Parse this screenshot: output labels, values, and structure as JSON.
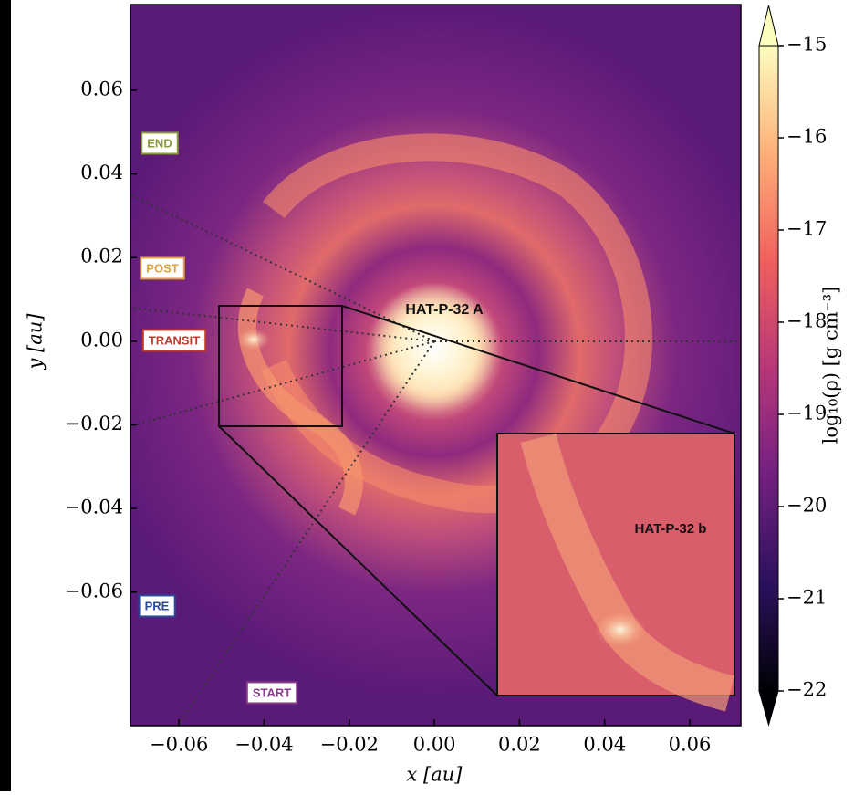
{
  "chart_data": {
    "type": "image",
    "xlabel": "x [au]",
    "ylabel": "y [au]",
    "xlim": [
      -0.0714,
      0.072
    ],
    "ylim": [
      -0.0919,
      0.0805
    ],
    "xticks": [
      {
        "value": -0.06,
        "label": "−0.06"
      },
      {
        "value": -0.04,
        "label": "−0.04"
      },
      {
        "value": -0.02,
        "label": "−0.02"
      },
      {
        "value": 0,
        "label": "0.00"
      },
      0.02,
      0.04,
      0.06
    ],
    "yticks": [
      {
        "value": -0.06,
        "label": "−0.06"
      },
      {
        "value": -0.04,
        "label": "−0.04"
      },
      {
        "value": -0.02,
        "label": "−0.02"
      },
      {
        "value": 0,
        "label": "0.00"
      },
      0.02,
      0.04,
      0.06
    ],
    "colorbar": {
      "label": "log₁₀(ρ) [g cm⁻³]",
      "lim": [
        -22,
        -15
      ],
      "ticks": [
        {
          "value": -22,
          "label": "−22"
        },
        {
          "value": -21,
          "label": "−21"
        },
        {
          "value": -20,
          "label": "−20"
        },
        {
          "value": -19,
          "label": "−19"
        },
        {
          "value": -18,
          "label": "−18"
        },
        {
          "value": -17,
          "label": "−17"
        },
        {
          "value": -16,
          "label": "−16"
        },
        {
          "value": -15,
          "label": "−15"
        }
      ],
      "colormap": [
        "#000004",
        "#2c115f",
        "#721f81",
        "#b73779",
        "#f1605d",
        "#feb078",
        "#fcfdbf"
      ]
    },
    "annotations": [
      {
        "text": "END",
        "color": "#8a9a3a",
        "boxed": true
      },
      {
        "text": "POST",
        "color": "#e0a040",
        "boxed": true
      },
      {
        "text": "TRANSIT",
        "color": "#c0392b",
        "boxed": true
      },
      {
        "text": "PRE",
        "color": "#2a4a9a",
        "boxed": true
      },
      {
        "text": "START",
        "color": "#8a3a8a",
        "boxed": true
      },
      {
        "text": "HAT-P-32 A",
        "color": "#111111",
        "boxed": false
      },
      {
        "text": "HAT-P-32 b",
        "color": "#111111",
        "boxed": false
      }
    ]
  }
}
